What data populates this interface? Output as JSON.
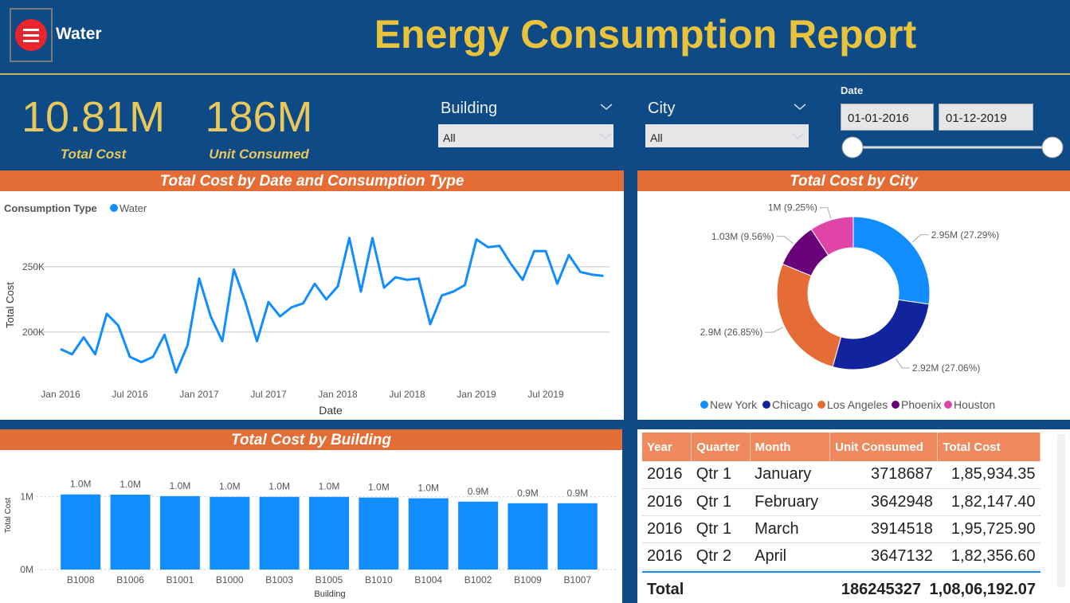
{
  "header": {
    "menu_label": "Water",
    "title": "Energy Consumption Report"
  },
  "kpis": [
    {
      "value": "10.81M",
      "label": "Total Cost"
    },
    {
      "value": "186M",
      "label": "Unit Consumed"
    }
  ],
  "slicers": [
    {
      "label": "Building",
      "selection": "All"
    },
    {
      "label": "City",
      "selection": "All"
    }
  ],
  "date_slicer": {
    "label": "Date",
    "start": "01-01-2016",
    "end": "01-12-2019"
  },
  "chart_data": [
    {
      "type": "line",
      "title": "Total Cost by Date and Consumption Type",
      "legend_title": "Consumption Type",
      "xlabel": "Date",
      "ylabel": "Total Cost",
      "categories": [
        "Jan 2016",
        null,
        null,
        null,
        null,
        null,
        "Jul 2016",
        null,
        null,
        null,
        null,
        null,
        "Jan 2017",
        null,
        null,
        null,
        null,
        null,
        "Jul 2017",
        null,
        null,
        null,
        null,
        null,
        "Jan 2018",
        null,
        null,
        null,
        null,
        null,
        "Jul 2018",
        null,
        null,
        null,
        null,
        null,
        "Jan 2019",
        null,
        null,
        null,
        null,
        null,
        "Jul 2019",
        null,
        null,
        null,
        null,
        null
      ],
      "series": [
        {
          "name": "Water",
          "color": "#118dff",
          "values": [
            187000,
            183000,
            196000,
            183000,
            214000,
            205000,
            181000,
            177000,
            181000,
            198000,
            169000,
            190000,
            241000,
            212000,
            193000,
            248000,
            223000,
            193000,
            223000,
            212000,
            219000,
            222000,
            237000,
            225000,
            235000,
            272000,
            231000,
            272000,
            234000,
            242000,
            240000,
            241000,
            206000,
            228000,
            231000,
            236000,
            271000,
            265000,
            266000,
            252000,
            240000,
            262000,
            262000,
            237000,
            259000,
            246000,
            244000,
            243000
          ]
        }
      ],
      "ylim": [
        167000,
        278000
      ],
      "yticks": [
        {
          "value": 200000,
          "label": "200K"
        },
        {
          "value": 250000,
          "label": "250K"
        }
      ],
      "grid": true
    },
    {
      "type": "donut",
      "title": "Total Cost by City",
      "categories": [
        "New York",
        "Chicago",
        "Los Angeles",
        "Phoenix",
        "Houston"
      ],
      "values": [
        2950000,
        2920000,
        2900000,
        1030000,
        1000000
      ],
      "value_labels": [
        "2.95M (27.29%)",
        "2.92M (27.06%)",
        "2.9M (26.85%)",
        "1.03M (9.56%)",
        "1M (9.25%)"
      ],
      "colors": [
        "#118dff",
        "#12239e",
        "#e66c37",
        "#6b007b",
        "#e044a7"
      ]
    },
    {
      "type": "bar",
      "title": "Total Cost by Building",
      "xlabel": "Building",
      "ylabel": "Total Cost",
      "categories": [
        "B1008",
        "B1006",
        "B1001",
        "B1000",
        "B1003",
        "B1005",
        "B1010",
        "B1004",
        "B1002",
        "B1009",
        "B1007"
      ],
      "values": [
        1033000,
        1030000,
        1010000,
        1000000,
        1000000,
        1000000,
        990000,
        980000,
        934000,
        912000,
        912000
      ],
      "value_labels": [
        "1.0M",
        "1.0M",
        "1.0M",
        "1.0M",
        "1.0M",
        "1.0M",
        "1.0M",
        "1.0M",
        "0.9M",
        "0.9M",
        "0.9M"
      ],
      "color": "#118dff",
      "ylim": [
        0,
        1260000
      ],
      "yticks": [
        {
          "value": 0,
          "label": "0M"
        },
        {
          "value": 1000000,
          "label": "1M"
        }
      ],
      "grid": true
    }
  ],
  "table": {
    "columns": [
      "Year",
      "Quarter",
      "Month",
      "Unit Consumed",
      "Total Cost"
    ],
    "rows": [
      [
        "2016",
        "Qtr 1",
        "January",
        "3718687",
        "1,85,934.35"
      ],
      [
        "2016",
        "Qtr 1",
        "February",
        "3642948",
        "1,82,147.40"
      ],
      [
        "2016",
        "Qtr 1",
        "March",
        "3914518",
        "1,95,725.90"
      ],
      [
        "2016",
        "Qtr 2",
        "April",
        "3647132",
        "1,82,356.60"
      ]
    ],
    "total": [
      "Total",
      "186245327",
      "1,08,06,192.07"
    ]
  }
}
